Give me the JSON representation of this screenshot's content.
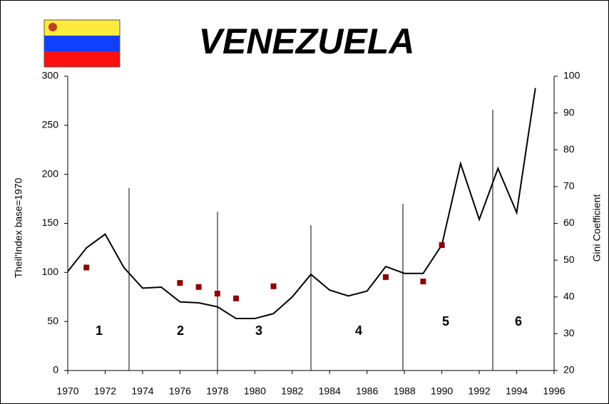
{
  "chart_data": {
    "type": "line",
    "title": "VENEZUELA",
    "x": [
      1970,
      1971,
      1972,
      1973,
      1974,
      1975,
      1976,
      1977,
      1978,
      1979,
      1980,
      1981,
      1982,
      1983,
      1984,
      1985,
      1986,
      1987,
      1988,
      1989,
      1990,
      1991,
      1992,
      1993,
      1994,
      1995
    ],
    "series": [
      {
        "name": "Theil'Index",
        "type": "line",
        "color": "#000000",
        "values": [
          101,
          125,
          139,
          105,
          84,
          85,
          70,
          69,
          65,
          53,
          53,
          58,
          75,
          98,
          82,
          76,
          81,
          106,
          99,
          99,
          128,
          211,
          154,
          206,
          161,
          288
        ]
      },
      {
        "name": "Gini Coefficient",
        "type": "scatter",
        "axis": "y2",
        "color": "#8b0000",
        "x": [
          1971,
          1976,
          1977,
          1978,
          1979,
          1981,
          1987,
          1989,
          1990
        ],
        "values": [
          48,
          43.8,
          42.7,
          40.9,
          39.6,
          42.9,
          45.4,
          44.2,
          54.1
        ]
      }
    ],
    "y_label": "Theil'Index base=1970",
    "y2_label": "Gini Coefficient",
    "annotations": [
      "1",
      "2",
      "3",
      "4",
      "5",
      "6"
    ],
    "xlim": [
      1970,
      1996
    ],
    "xticks": [
      1970,
      1972,
      1974,
      1976,
      1978,
      1980,
      1982,
      1984,
      1986,
      1988,
      1990,
      1992,
      1994,
      1996
    ],
    "ylim": [
      0,
      300
    ],
    "yticks": [
      0,
      50,
      100,
      150,
      200,
      250,
      300
    ],
    "y2lim": [
      20,
      100
    ],
    "y2ticks": [
      20,
      30,
      40,
      50,
      60,
      70,
      80,
      90,
      100
    ]
  }
}
